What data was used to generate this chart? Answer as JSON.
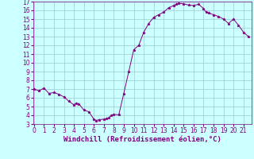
{
  "x": [
    0,
    0.5,
    1,
    1.5,
    2,
    2.5,
    3,
    3.5,
    4,
    4.25,
    4.5,
    5,
    5.5,
    6,
    6.25,
    6.5,
    7,
    7.25,
    7.5,
    7.75,
    8,
    8.5,
    9,
    9.5,
    10,
    10.5,
    11,
    11.5,
    12,
    12.5,
    13,
    13.5,
    14,
    14.25,
    14.5,
    15,
    15.5,
    16,
    16.5,
    17,
    17.25,
    17.5,
    18,
    18.5,
    19,
    19.5,
    20,
    20.5,
    21,
    21.5
  ],
  "y": [
    7.0,
    6.8,
    7.1,
    6.5,
    6.6,
    6.4,
    6.1,
    5.6,
    5.2,
    5.4,
    5.3,
    4.6,
    4.4,
    3.55,
    3.4,
    3.5,
    3.55,
    3.6,
    3.7,
    4.0,
    4.1,
    4.05,
    6.5,
    9.0,
    11.5,
    12.0,
    13.5,
    14.5,
    15.2,
    15.5,
    15.8,
    16.3,
    16.55,
    16.7,
    16.8,
    16.75,
    16.6,
    16.55,
    16.7,
    16.2,
    15.8,
    15.7,
    15.5,
    15.3,
    15.0,
    14.5,
    15.0,
    14.3,
    13.5,
    13.0
  ],
  "xlabel": "Windchill (Refroidissement éolien,°C)",
  "line_color": "#800080",
  "marker": "*",
  "marker_size": 2.5,
  "bg_color": "#ccffff",
  "grid_color": "#99cccc",
  "tick_color": "#800080",
  "label_color": "#800080",
  "xlim": [
    -0.1,
    21.8
  ],
  "ylim": [
    3,
    17
  ],
  "xticks": [
    0,
    1,
    2,
    3,
    4,
    5,
    6,
    7,
    8,
    9,
    10,
    11,
    12,
    13,
    14,
    15,
    16,
    17,
    18,
    19,
    20,
    21
  ],
  "yticks": [
    3,
    4,
    5,
    6,
    7,
    8,
    9,
    10,
    11,
    12,
    13,
    14,
    15,
    16,
    17
  ],
  "xlabel_fontsize": 6.5,
  "tick_fontsize": 5.5
}
